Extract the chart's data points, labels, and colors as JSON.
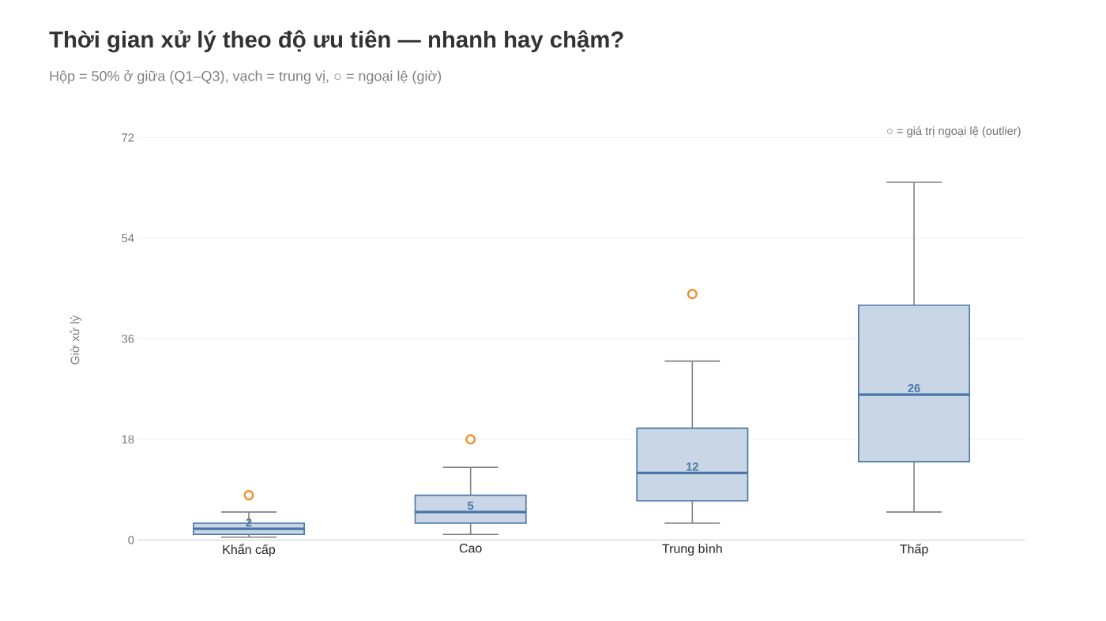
{
  "chart_data": {
    "type": "box",
    "title": "Thời gian xử lý theo độ ưu tiên — nhanh hay chậm?",
    "subtitle": "Hộp = 50% ở giữa (Q1–Q3), vạch = trung vị, ○ = ngoại lệ (giờ)",
    "ylabel": "Giờ xử lý",
    "annotations": [
      "○ = giá trị ngoại lệ (outlier)"
    ],
    "categories": [
      "Khẩn cấp",
      "Cao",
      "Trung bình",
      "Thấp"
    ],
    "boxes": [
      {
        "low": 0.5,
        "q1": 1,
        "median": 2,
        "q3": 3,
        "high": 5,
        "outliers": [
          8
        ]
      },
      {
        "low": 1,
        "q1": 3,
        "median": 5,
        "q3": 8,
        "high": 13,
        "outliers": [
          18
        ]
      },
      {
        "low": 3,
        "q1": 7,
        "median": 12,
        "q3": 20,
        "high": 32,
        "outliers": [
          44
        ]
      },
      {
        "low": 5,
        "q1": 14,
        "median": 26,
        "q3": 42,
        "high": 64,
        "outliers": null
      }
    ],
    "color": "#4a76a8",
    "ylim": [
      0,
      72
    ],
    "yticks": [
      0,
      18,
      36,
      54,
      72
    ],
    "grid": "y",
    "value_labels": [
      "2",
      "5",
      "12",
      "26"
    ]
  }
}
